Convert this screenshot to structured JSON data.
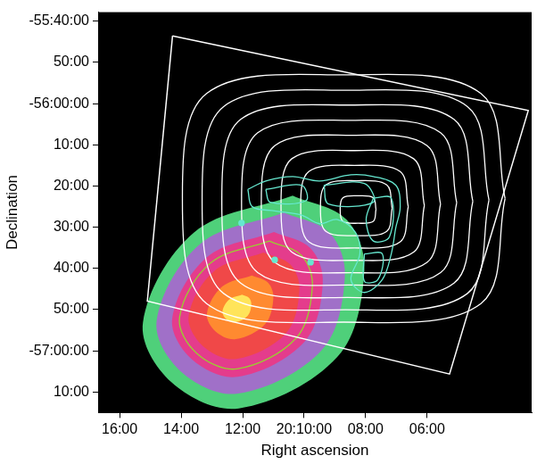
{
  "chart_data": {
    "type": "contour",
    "x_label": "Right ascension",
    "y_label": "Declination",
    "xlim": [
      16.7,
      2.6
    ],
    "ylim": [
      -57.25,
      -55.63
    ],
    "xticks": [
      {
        "value": 16,
        "label": "16:00"
      },
      {
        "value": 14,
        "label": "14:00"
      },
      {
        "value": 12,
        "label": "12:00"
      },
      {
        "value": 10,
        "label": "20:10:00"
      },
      {
        "value": 8,
        "label": "08:00"
      },
      {
        "value": 6,
        "label": "06:00"
      }
    ],
    "yticks": [
      {
        "value": -55.6667,
        "label": "-55:40:00"
      },
      {
        "value": -55.8333,
        "label": "50:00"
      },
      {
        "value": -56,
        "label": "-56:00:00"
      },
      {
        "value": -56.1667,
        "label": "10:00"
      },
      {
        "value": -56.3333,
        "label": "20:00"
      },
      {
        "value": -56.5,
        "label": "30:00"
      },
      {
        "value": -56.6667,
        "label": "40:00"
      },
      {
        "value": -56.8333,
        "label": "50:00"
      },
      {
        "value": -57,
        "label": "-57:00:00"
      },
      {
        "value": -57.1667,
        "label": "10:00"
      }
    ],
    "grid": false,
    "series": [
      {
        "type": "area",
        "color": "#4fd07a",
        "x": [
          10.373,
          8.624,
          8.041,
          8.915,
          12.122,
          14.309,
          15.242,
          13.58
        ],
        "y": [
          -56.372,
          -56.469,
          -56.677,
          -57.024,
          -57.233,
          -57.128,
          -56.885,
          -56.521
        ]
      },
      {
        "type": "area",
        "color": "#a070c8",
        "x": [
          10.657,
          9.171,
          8.675,
          9.418,
          12.144,
          14.003,
          14.796,
          13.383
        ],
        "y": [
          -56.441,
          -56.523,
          -56.7,
          -56.996,
          -57.173,
          -57.084,
          -56.878,
          -56.568
        ]
      },
      {
        "type": "area",
        "color": "#e43c8c",
        "x": [
          10.979,
          9.79,
          9.394,
          9.988,
          12.169,
          13.656,
          14.29,
          13.16
        ],
        "y": [
          -56.519,
          -56.585,
          -56.727,
          -56.963,
          -57.105,
          -57.034,
          -56.869,
          -56.621
        ]
      },
      {
        "type": "area",
        "color": "#f04848",
        "x": [
          11.32,
          10.446,
          10.154,
          10.591,
          12.195,
          13.289,
          13.755,
          12.924
        ],
        "y": [
          -56.602,
          -56.651,
          -56.755,
          -56.929,
          -57.033,
          -56.981,
          -56.859,
          -56.677
        ]
      },
      {
        "type": "area",
        "color": "#ff8a30",
        "x": [
          11.699,
          11.175,
          11.0,
          11.262,
          12.224,
          12.88,
          13.16,
          12.662
        ],
        "y": [
          -56.695,
          -56.724,
          -56.786,
          -56.891,
          -56.953,
          -56.922,
          -56.849,
          -56.74
        ]
      },
      {
        "type": "area",
        "color": "#ffe45a",
        "x": [
          12.022,
          11.794,
          11.718,
          11.832,
          12.249,
          12.533,
          12.655,
          12.439
        ],
        "y": [
          -56.773,
          -56.786,
          -56.813,
          -56.858,
          -56.885,
          -56.872,
          -56.84,
          -56.793
        ]
      },
      {
        "type": "contour",
        "color": "#9acd32",
        "x": [
          11.131,
          10.082,
          9.732,
          10.256,
          12.18,
          13.493,
          14.052,
          13.055
        ],
        "y": [
          -56.556,
          -56.615,
          -56.74,
          -56.948,
          -57.073,
          -57.01,
          -56.865,
          -56.646
        ]
      },
      {
        "type": "polygon",
        "color": "#ffffff",
        "x": [
          14.28,
          2.71,
          5.27,
          15.1
        ],
        "y": [
          -55.726,
          -56.028,
          -57.094,
          -56.799
        ]
      },
      {
        "type": "contour",
        "color": "#ffffff",
        "x": [
          7.662,
          7.749,
          8.245,
          8.741,
          8.828,
          8.741,
          8.245,
          7.749
        ],
        "y": [
          -56.428,
          -56.381,
          -56.373,
          -56.381,
          -56.428,
          -56.476,
          -56.484,
          -56.476
        ]
      },
      {
        "type": "contour",
        "color": "#ffffff",
        "x": [
          7.137,
          7.312,
          8.303,
          9.294,
          9.469,
          9.294,
          8.303,
          7.312
        ],
        "y": [
          -56.423,
          -56.329,
          -56.312,
          -56.329,
          -56.423,
          -56.517,
          -56.534,
          -56.517
        ]
      },
      {
        "type": "contour",
        "color": "#ffffff",
        "x": [
          6.613,
          6.875,
          8.362,
          9.849,
          10.111,
          9.849,
          8.362,
          6.875
        ],
        "y": [
          -56.417,
          -56.275,
          -56.25,
          -56.275,
          -56.417,
          -56.559,
          -56.584,
          -56.559
        ]
      },
      {
        "type": "contour",
        "color": "#ffffff",
        "x": [
          6.088,
          6.438,
          8.42,
          10.402,
          10.752,
          10.402,
          8.42,
          6.438
        ],
        "y": [
          -56.412,
          -56.223,
          -56.19,
          -56.223,
          -56.412,
          -56.601,
          -56.634,
          -56.601
        ]
      },
      {
        "type": "contour",
        "color": "#ffffff",
        "x": [
          5.563,
          6.0,
          8.478,
          10.956,
          11.393,
          10.956,
          8.478,
          6.0
        ],
        "y": [
          -56.406,
          -56.17,
          -56.128,
          -56.17,
          -56.406,
          -56.642,
          -56.684,
          -56.642
        ]
      },
      {
        "type": "contour",
        "color": "#ffffff",
        "x": [
          5.037,
          5.562,
          8.536,
          11.51,
          12.035,
          11.51,
          8.536,
          5.562
        ],
        "y": [
          -56.401,
          -56.118,
          -56.068,
          -56.118,
          -56.401,
          -56.684,
          -56.734,
          -56.684
        ]
      },
      {
        "type": "contour",
        "color": "#ffffff",
        "x": [
          4.513,
          5.125,
          8.595,
          12.065,
          12.677,
          12.065,
          8.595,
          5.125
        ],
        "y": [
          -56.395,
          -56.064,
          -56.006,
          -56.064,
          -56.395,
          -56.726,
          -56.784,
          -56.726
        ]
      },
      {
        "type": "contour",
        "color": "#ffffff",
        "x": [
          3.988,
          4.688,
          8.653,
          12.618,
          13.318,
          12.618,
          8.653,
          4.688
        ],
        "y": [
          -56.39,
          -56.012,
          -55.946,
          -56.012,
          -56.39,
          -56.768,
          -56.834,
          -56.768
        ]
      },
      {
        "type": "contour",
        "color": "#ffffff",
        "x": [
          3.463,
          4.25,
          8.711,
          13.172,
          13.959,
          13.172,
          8.711,
          4.25
        ],
        "y": [
          -56.384,
          -55.959,
          -55.884,
          -55.959,
          -56.384,
          -56.809,
          -56.884,
          -56.809
        ]
      },
      {
        "type": "contour",
        "color": "#66e8d0",
        "x": [
          11.831,
          11.248,
          10.373,
          9.499,
          8.478,
          7.749,
          7.02,
          6.875,
          7.02,
          7.166,
          7.458,
          8.041,
          8.478,
          8.187,
          8.332,
          8.915,
          9.499,
          10.082,
          10.956,
          11.685
        ],
        "y": [
          -56.347,
          -56.313,
          -56.295,
          -56.313,
          -56.288,
          -56.295,
          -56.33,
          -56.417,
          -56.503,
          -56.608,
          -56.712,
          -56.764,
          -56.712,
          -56.608,
          -56.521,
          -56.469,
          -56.486,
          -56.451,
          -56.434,
          -56.417
        ]
      },
      {
        "type": "contour",
        "color": "#66e8d0",
        "x": [
          11.248,
          10.082,
          9.936,
          11.102
        ],
        "y": [
          -56.347,
          -56.33,
          -56.392,
          -56.399
        ]
      },
      {
        "type": "contour",
        "color": "#66e8d0",
        "x": [
          9.353,
          8.041,
          7.749,
          9.207
        ],
        "y": [
          -56.33,
          -56.323,
          -56.399,
          -56.406
        ]
      },
      {
        "type": "contour",
        "color": "#66e8d0",
        "x": [
          7.749,
          7.166,
          7.224,
          7.749,
          7.983
        ],
        "y": [
          -56.382,
          -56.382,
          -56.538,
          -56.556,
          -56.469
        ]
      },
      {
        "type": "contour",
        "color": "#66e8d0",
        "x": [
          8.041,
          7.458,
          7.603,
          8.041
        ],
        "y": [
          -56.608,
          -56.608,
          -56.712,
          -56.719
        ]
      },
      {
        "type": "scatter",
        "color": "#66e8d0",
        "marker": "circle",
        "x": [
          12.035,
          10.956,
          9.79
        ],
        "y": [
          -56.483,
          -56.632,
          -56.642
        ]
      }
    ]
  }
}
